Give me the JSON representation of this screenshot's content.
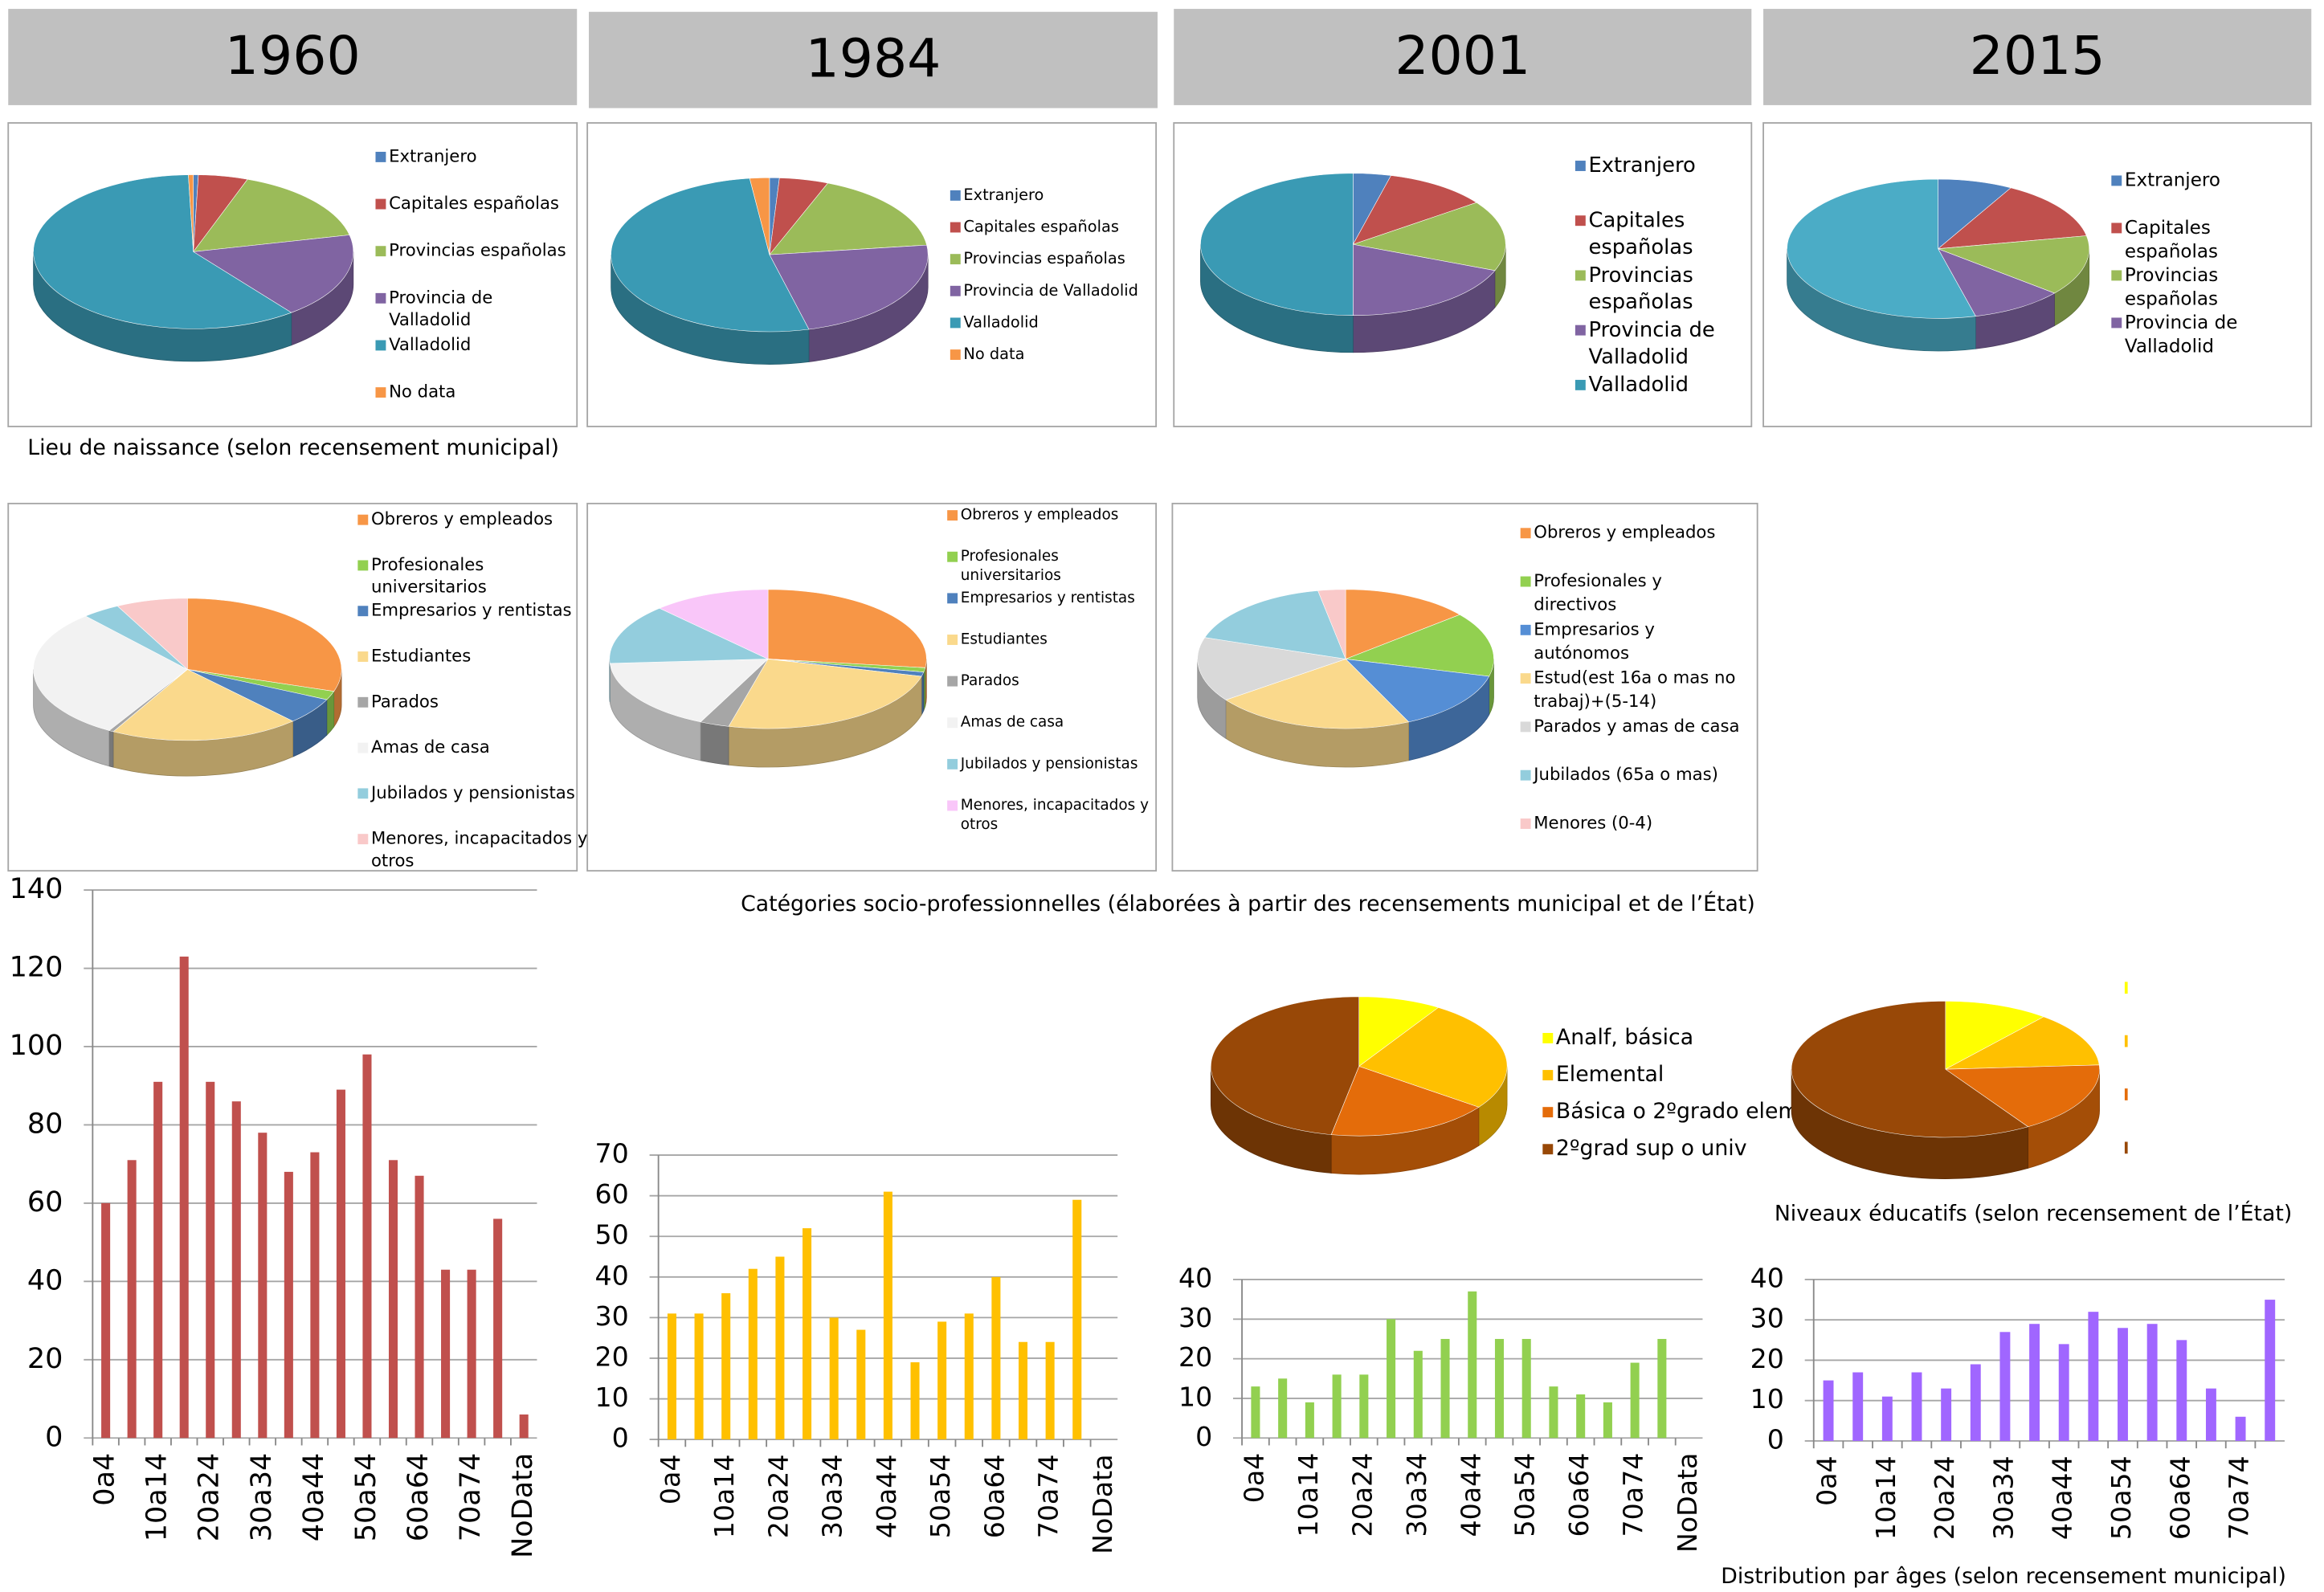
{
  "headers": [
    "1960",
    "1984",
    "2001",
    "2015"
  ],
  "captions": [
    "Lieu de naissance (selon recensement municipal)",
    "Catégories socio-professionnelles (élaborées à partir des recensements municipal et de l’État)",
    "Niveaux éducatifs (selon recensement de l’État)",
    "Distribution par âges (selon recensement municipal)"
  ],
  "chart_data": [
    {
      "type": "pie",
      "categories": [
        "Extranjero",
        "Capitales españolas",
        "Provincias españolas",
        "Provincia de Valladolid",
        "Valladolid",
        "No data"
      ],
      "values": [
        0.5,
        5,
        16,
        18,
        60,
        0.5
      ],
      "colors": [
        "#4f81bd",
        "#c0504d",
        "#9bbb59",
        "#8064a2",
        "#3a9ab4",
        "#f79646"
      ]
    },
    {
      "type": "pie",
      "categories": [
        "Extranjero",
        "Capitales españolas",
        "Provincias españolas",
        "Provincia de Valladolid",
        "Valladolid",
        "No data"
      ],
      "values": [
        1,
        5,
        17,
        23,
        52,
        2
      ],
      "colors": [
        "#4f81bd",
        "#c0504d",
        "#9bbb59",
        "#8064a2",
        "#3a9ab4",
        "#f79646"
      ]
    },
    {
      "type": "pie",
      "categories": [
        "Extranjero",
        "Capitales españolas",
        "Provincias españolas",
        "Provincia de Valladolid",
        "Valladolid"
      ],
      "values": [
        4,
        11,
        16,
        19,
        50
      ],
      "colors": [
        "#4f81bd",
        "#c0504d",
        "#9bbb59",
        "#8064a2",
        "#3a9ab4"
      ]
    },
    {
      "type": "pie",
      "categories": [
        "Extranjero",
        "Capitales españolas",
        "Provincias españolas",
        "Provincia de Valladolid",
        null
      ],
      "values": [
        8,
        14,
        14,
        10,
        54
      ],
      "colors": [
        "#4f81bd",
        "#c0504d",
        "#9bbb59",
        "#8064a2",
        "#4bacc6"
      ]
    },
    {
      "type": "pie",
      "categories": [
        "Obreros y empleados",
        "Profesionales universitarios",
        "Empresarios y rentistas",
        "Estudiantes",
        "Parados",
        "Amas de casa",
        "Jubilados y pensionistas",
        "Menores, incapacitados y otros"
      ],
      "values": [
        30,
        2,
        6,
        20,
        0.5,
        30,
        4,
        7.5
      ],
      "colors": [
        "#f79646",
        "#92d050",
        "#4f81bd",
        "#fad98c",
        "#a6a6a6",
        "#f2f2f2",
        "#93cddd",
        "#f9c9c9"
      ]
    },
    {
      "type": "pie",
      "categories": [
        "Obreros y empleados",
        "Profesionales universitarios",
        "Empresarios y rentistas",
        "Estudiantes",
        "Parados",
        "Amas de casa",
        "Jubilados y pensionistas",
        "Menores, incapacitados y otros"
      ],
      "values": [
        27,
        1,
        1,
        25,
        3,
        17,
        14,
        12
      ],
      "colors": [
        "#f79646",
        "#92d050",
        "#4f81bd",
        "#fad98c",
        "#a6a6a6",
        "#f2f2f2",
        "#93cddd",
        "#f9c6f9"
      ]
    },
    {
      "type": "pie",
      "categories": [
        "Obreros y empleados",
        "Profesionales y directivos",
        "Empresarios y autónomos",
        "Estud(est 16a o mas no trabaj)+(5-14)",
        "Parados y amas de casa",
        "Jubilados (65a o mas)",
        "Menores (0-4)"
      ],
      "values": [
        14,
        15,
        14,
        22,
        15,
        17,
        3
      ],
      "colors": [
        "#f79646",
        "#92d050",
        "#558ed5",
        "#fad98c",
        "#d9d9d9",
        "#93cddd",
        "#f9c9c9"
      ]
    },
    {
      "type": "pie",
      "categories": [
        "Analf, básica",
        "Elemental",
        "Básica o 2ºgrado elem",
        "2ºgrad sup o univ"
      ],
      "values": [
        9,
        26,
        18,
        47
      ],
      "colors": [
        "#ffff00",
        "#ffc000",
        "#e46c0a",
        "#984807"
      ]
    },
    {
      "type": "pie",
      "values": [
        11,
        13,
        17,
        59
      ],
      "colors": [
        "#ffff00",
        "#ffc000",
        "#e46c0a",
        "#984807"
      ]
    },
    {
      "type": "bar",
      "categories": [
        "0a4",
        null,
        "10a14",
        null,
        "20a24",
        null,
        "30a34",
        null,
        "40a44",
        null,
        "50a54",
        null,
        "60a64",
        null,
        "70a74",
        null,
        "NoData"
      ],
      "values": [
        60,
        71,
        91,
        123,
        91,
        86,
        78,
        68,
        73,
        89,
        98,
        71,
        67,
        43,
        43,
        56,
        6
      ],
      "color": "#c0504d",
      "ylim": [
        0,
        140
      ],
      "yticks": [
        0,
        20,
        40,
        60,
        80,
        100,
        120,
        140
      ],
      "grid": true
    },
    {
      "type": "bar",
      "categories": [
        "0a4",
        null,
        "10a14",
        null,
        "20a24",
        null,
        "30a34",
        null,
        "40a44",
        null,
        "50a54",
        null,
        "60a64",
        null,
        "70a74",
        null,
        "NoData"
      ],
      "values": [
        31,
        31,
        36,
        42,
        45,
        52,
        30,
        27,
        61,
        19,
        29,
        31,
        40,
        24,
        24,
        59,
        null
      ],
      "color": "#ffc000",
      "ylim": [
        0,
        70
      ],
      "yticks": [
        0,
        10,
        20,
        30,
        40,
        50,
        60,
        70
      ],
      "grid": true
    },
    {
      "type": "bar",
      "categories": [
        "0a4",
        null,
        "10a14",
        null,
        "20a24",
        null,
        "30a34",
        null,
        "40a44",
        null,
        "50a54",
        null,
        "60a64",
        null,
        "70a74",
        null,
        "NoData"
      ],
      "values": [
        13,
        15,
        9,
        16,
        16,
        30,
        22,
        25,
        37,
        25,
        25,
        13,
        11,
        9,
        19,
        25,
        null
      ],
      "color": "#92d050",
      "ylim": [
        0,
        40
      ],
      "yticks": [
        0,
        10,
        20,
        30,
        40
      ],
      "grid": true
    },
    {
      "type": "bar",
      "categories": [
        "0a4",
        null,
        "10a14",
        null,
        "20a24",
        null,
        "30a34",
        null,
        "40a44",
        null,
        "50a54",
        null,
        "60a64",
        null,
        "70a74",
        null
      ],
      "values": [
        15,
        17,
        11,
        17,
        13,
        19,
        27,
        29,
        24,
        32,
        28,
        29,
        25,
        13,
        6,
        35
      ],
      "color": "#a066ff",
      "ylim": [
        0,
        40
      ],
      "yticks": [
        0,
        10,
        20,
        30,
        40
      ],
      "grid": true
    }
  ]
}
